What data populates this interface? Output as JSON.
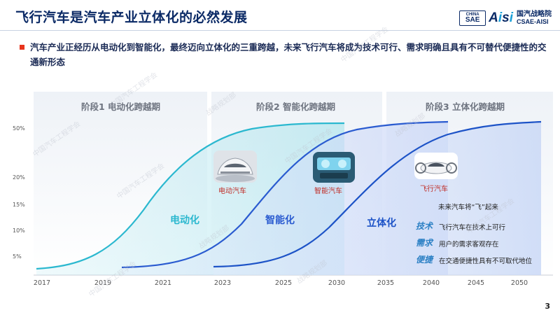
{
  "header": {
    "title": "飞行汽车是汽车产业立体化的必然发展",
    "logo": {
      "sae_top": "CHINA",
      "sae_bottom": "SAE",
      "aisi_a": "A",
      "aisi_i1": "i",
      "aisi_s": "s",
      "aisi_i2": "i",
      "cn": "国汽战略院",
      "en": "CSAE-AISI"
    }
  },
  "subtitle": "汽车产业正经历从电动化到智能化，最终迈向立体化的三重跨越，未来飞行汽车将成为技术可行、需求明确且具有不可替代便捷性的交通新形态",
  "phases": [
    {
      "label": "阶段1 电动化跨越期"
    },
    {
      "label": "阶段2 智能化跨越期"
    },
    {
      "label": "阶段3 立体化跨越期"
    }
  ],
  "y_ticks": [
    "50%",
    "20%",
    "15%",
    "10%",
    "5%"
  ],
  "x_ticks": [
    "2017",
    "2019",
    "2021",
    "2023",
    "2025",
    "2030",
    "2035",
    "2040",
    "2045",
    "2050"
  ],
  "curves": [
    {
      "label": "电动化",
      "color": "#2bb8cf"
    },
    {
      "label": "智能化",
      "color": "#2a5bd0"
    },
    {
      "label": "立体化",
      "color": "#1d53c7"
    }
  ],
  "cars": [
    {
      "label": "电动汽车"
    },
    {
      "label": "智能汽车"
    },
    {
      "label": "飞行汽车"
    }
  ],
  "notes": {
    "heading": "未来汽车将“飞”起来",
    "items": [
      {
        "key": "技术",
        "text": "飞行汽车在技术上可行"
      },
      {
        "key": "需求",
        "text": "用户的需求客观存在"
      },
      {
        "key": "便捷",
        "text": "在交通便捷性具有不可取代地位"
      }
    ]
  },
  "watermark": {
    "line1": "中国汽车工程学会",
    "line2": "战略规划部"
  },
  "page_number": "3"
}
